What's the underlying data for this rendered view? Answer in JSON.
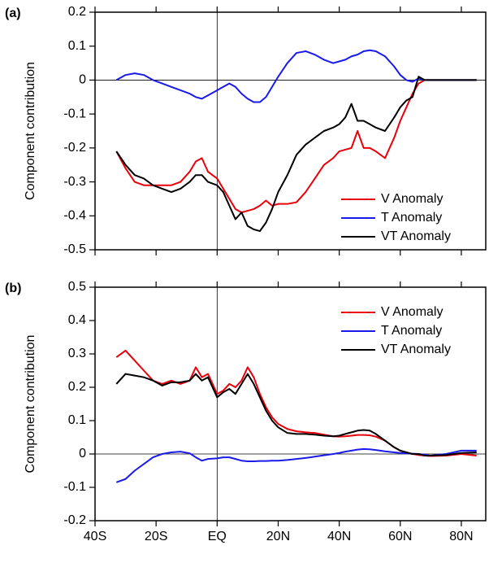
{
  "chart_data": [
    {
      "type": "line",
      "panel_label": "(a)",
      "ylabel": "Component contribution",
      "x": [
        -33,
        -30,
        -27,
        -24,
        -21,
        -18,
        -15,
        -12,
        -9,
        -7,
        -5,
        -3,
        0,
        2,
        4,
        6,
        8,
        10,
        12,
        14,
        16,
        18,
        20,
        23,
        26,
        29,
        32,
        35,
        38,
        40,
        42,
        44,
        46,
        48,
        50,
        52,
        55,
        58,
        60,
        62,
        64,
        66,
        68,
        70,
        75,
        80,
        85
      ],
      "series": [
        {
          "name": "V Anomaly",
          "color": "#e8000b",
          "values": [
            -0.21,
            -0.26,
            -0.3,
            -0.31,
            -0.31,
            -0.31,
            -0.31,
            -0.3,
            -0.27,
            -0.24,
            -0.23,
            -0.27,
            -0.29,
            -0.32,
            -0.35,
            -0.38,
            -0.39,
            -0.385,
            -0.38,
            -0.37,
            -0.355,
            -0.37,
            -0.365,
            -0.365,
            -0.36,
            -0.33,
            -0.29,
            -0.25,
            -0.23,
            -0.21,
            -0.205,
            -0.2,
            -0.15,
            -0.2,
            -0.2,
            -0.21,
            -0.23,
            -0.17,
            -0.12,
            -0.08,
            -0.04,
            -0.01,
            0,
            0,
            0,
            0,
            0
          ]
        },
        {
          "name": "T Anomaly",
          "color": "#1a1aeb",
          "values": [
            0,
            0.015,
            0.02,
            0.015,
            0,
            -0.01,
            -0.02,
            -0.03,
            -0.04,
            -0.05,
            -0.055,
            -0.045,
            -0.03,
            -0.02,
            -0.01,
            -0.02,
            -0.04,
            -0.055,
            -0.065,
            -0.065,
            -0.05,
            -0.02,
            0.01,
            0.05,
            0.08,
            0.085,
            0.075,
            0.06,
            0.05,
            0.055,
            0.06,
            0.07,
            0.075,
            0.085,
            0.088,
            0.085,
            0.07,
            0.04,
            0.015,
            0,
            -0.005,
            0.005,
            0,
            0,
            0,
            0,
            0
          ]
        },
        {
          "name": "VT Anomaly",
          "color": "#000000",
          "values": [
            -0.21,
            -0.25,
            -0.28,
            -0.29,
            -0.31,
            -0.32,
            -0.33,
            -0.32,
            -0.3,
            -0.28,
            -0.28,
            -0.3,
            -0.31,
            -0.33,
            -0.37,
            -0.41,
            -0.39,
            -0.43,
            -0.44,
            -0.445,
            -0.42,
            -0.38,
            -0.33,
            -0.28,
            -0.22,
            -0.19,
            -0.17,
            -0.15,
            -0.14,
            -0.13,
            -0.11,
            -0.07,
            -0.12,
            -0.12,
            -0.13,
            -0.14,
            -0.15,
            -0.11,
            -0.08,
            -0.06,
            -0.05,
            0.01,
            0,
            0,
            0,
            0,
            0
          ]
        }
      ],
      "xlim": [
        -40,
        88
      ],
      "xticks": [
        -40,
        -20,
        0,
        20,
        40,
        60,
        80
      ],
      "ylim": [
        -0.5,
        0.2
      ],
      "yticks": [
        0.2,
        0.1,
        0,
        -0.1,
        -0.2,
        -0.3,
        -0.4,
        -0.5
      ],
      "hline": 0,
      "vline": 0,
      "legend": "lower right"
    },
    {
      "type": "line",
      "panel_label": "(b)",
      "ylabel": "Component contribution",
      "x": [
        -33,
        -30,
        -27,
        -24,
        -21,
        -18,
        -15,
        -12,
        -9,
        -7,
        -5,
        -3,
        0,
        2,
        4,
        6,
        8,
        10,
        12,
        14,
        16,
        18,
        20,
        23,
        26,
        29,
        32,
        35,
        38,
        40,
        42,
        44,
        46,
        48,
        50,
        52,
        55,
        58,
        60,
        62,
        64,
        66,
        68,
        70,
        75,
        80,
        85
      ],
      "series": [
        {
          "name": "V Anomaly",
          "color": "#e8000b",
          "values": [
            0.29,
            0.31,
            0.28,
            0.25,
            0.22,
            0.21,
            0.22,
            0.21,
            0.22,
            0.26,
            0.23,
            0.24,
            0.18,
            0.19,
            0.21,
            0.2,
            0.22,
            0.26,
            0.23,
            0.18,
            0.14,
            0.11,
            0.09,
            0.075,
            0.068,
            0.065,
            0.063,
            0.058,
            0.053,
            0.052,
            0.053,
            0.055,
            0.057,
            0.057,
            0.056,
            0.052,
            0.04,
            0.02,
            0.01,
            0.003,
            0,
            -0.003,
            -0.005,
            -0.006,
            -0.005,
            0,
            -0.005
          ]
        },
        {
          "name": "T Anomaly",
          "color": "#1a1aeb",
          "values": [
            -0.085,
            -0.075,
            -0.05,
            -0.03,
            -0.01,
            0,
            0.005,
            0.007,
            0.002,
            -0.01,
            -0.02,
            -0.015,
            -0.013,
            -0.01,
            -0.01,
            -0.015,
            -0.02,
            -0.022,
            -0.022,
            -0.021,
            -0.021,
            -0.02,
            -0.02,
            -0.018,
            -0.015,
            -0.012,
            -0.008,
            -0.004,
            0,
            0.003,
            0.007,
            0.01,
            0.013,
            0.015,
            0.014,
            0.012,
            0.008,
            0.005,
            0.003,
            0.002,
            0.001,
            0,
            -0.002,
            -0.005,
            0,
            0.01,
            0.01
          ]
        },
        {
          "name": "VT Anomaly",
          "color": "#000000",
          "values": [
            0.21,
            0.24,
            0.235,
            0.23,
            0.22,
            0.205,
            0.215,
            0.215,
            0.22,
            0.24,
            0.22,
            0.23,
            0.17,
            0.185,
            0.195,
            0.18,
            0.21,
            0.24,
            0.21,
            0.17,
            0.13,
            0.1,
            0.08,
            0.063,
            0.06,
            0.06,
            0.058,
            0.055,
            0.053,
            0.055,
            0.06,
            0.065,
            0.07,
            0.072,
            0.07,
            0.06,
            0.04,
            0.02,
            0.01,
            0.005,
            0,
            0,
            -0.005,
            -0.005,
            -0.003,
            0.003,
            0.005
          ]
        }
      ],
      "xlim": [
        -40,
        88
      ],
      "xticks": [
        {
          "value": -40,
          "label": "40S"
        },
        {
          "value": -20,
          "label": "20S"
        },
        {
          "value": 0,
          "label": "EQ"
        },
        {
          "value": 20,
          "label": "20N"
        },
        {
          "value": 40,
          "label": "40N"
        },
        {
          "value": 60,
          "label": "60N"
        },
        {
          "value": 80,
          "label": "80N"
        }
      ],
      "ylim": [
        -0.2,
        0.5
      ],
      "yticks": [
        0.5,
        0.4,
        0.3,
        0.2,
        0.1,
        0,
        -0.1,
        -0.2
      ],
      "hline": 0,
      "vline": 0,
      "legend": "upper right"
    }
  ]
}
